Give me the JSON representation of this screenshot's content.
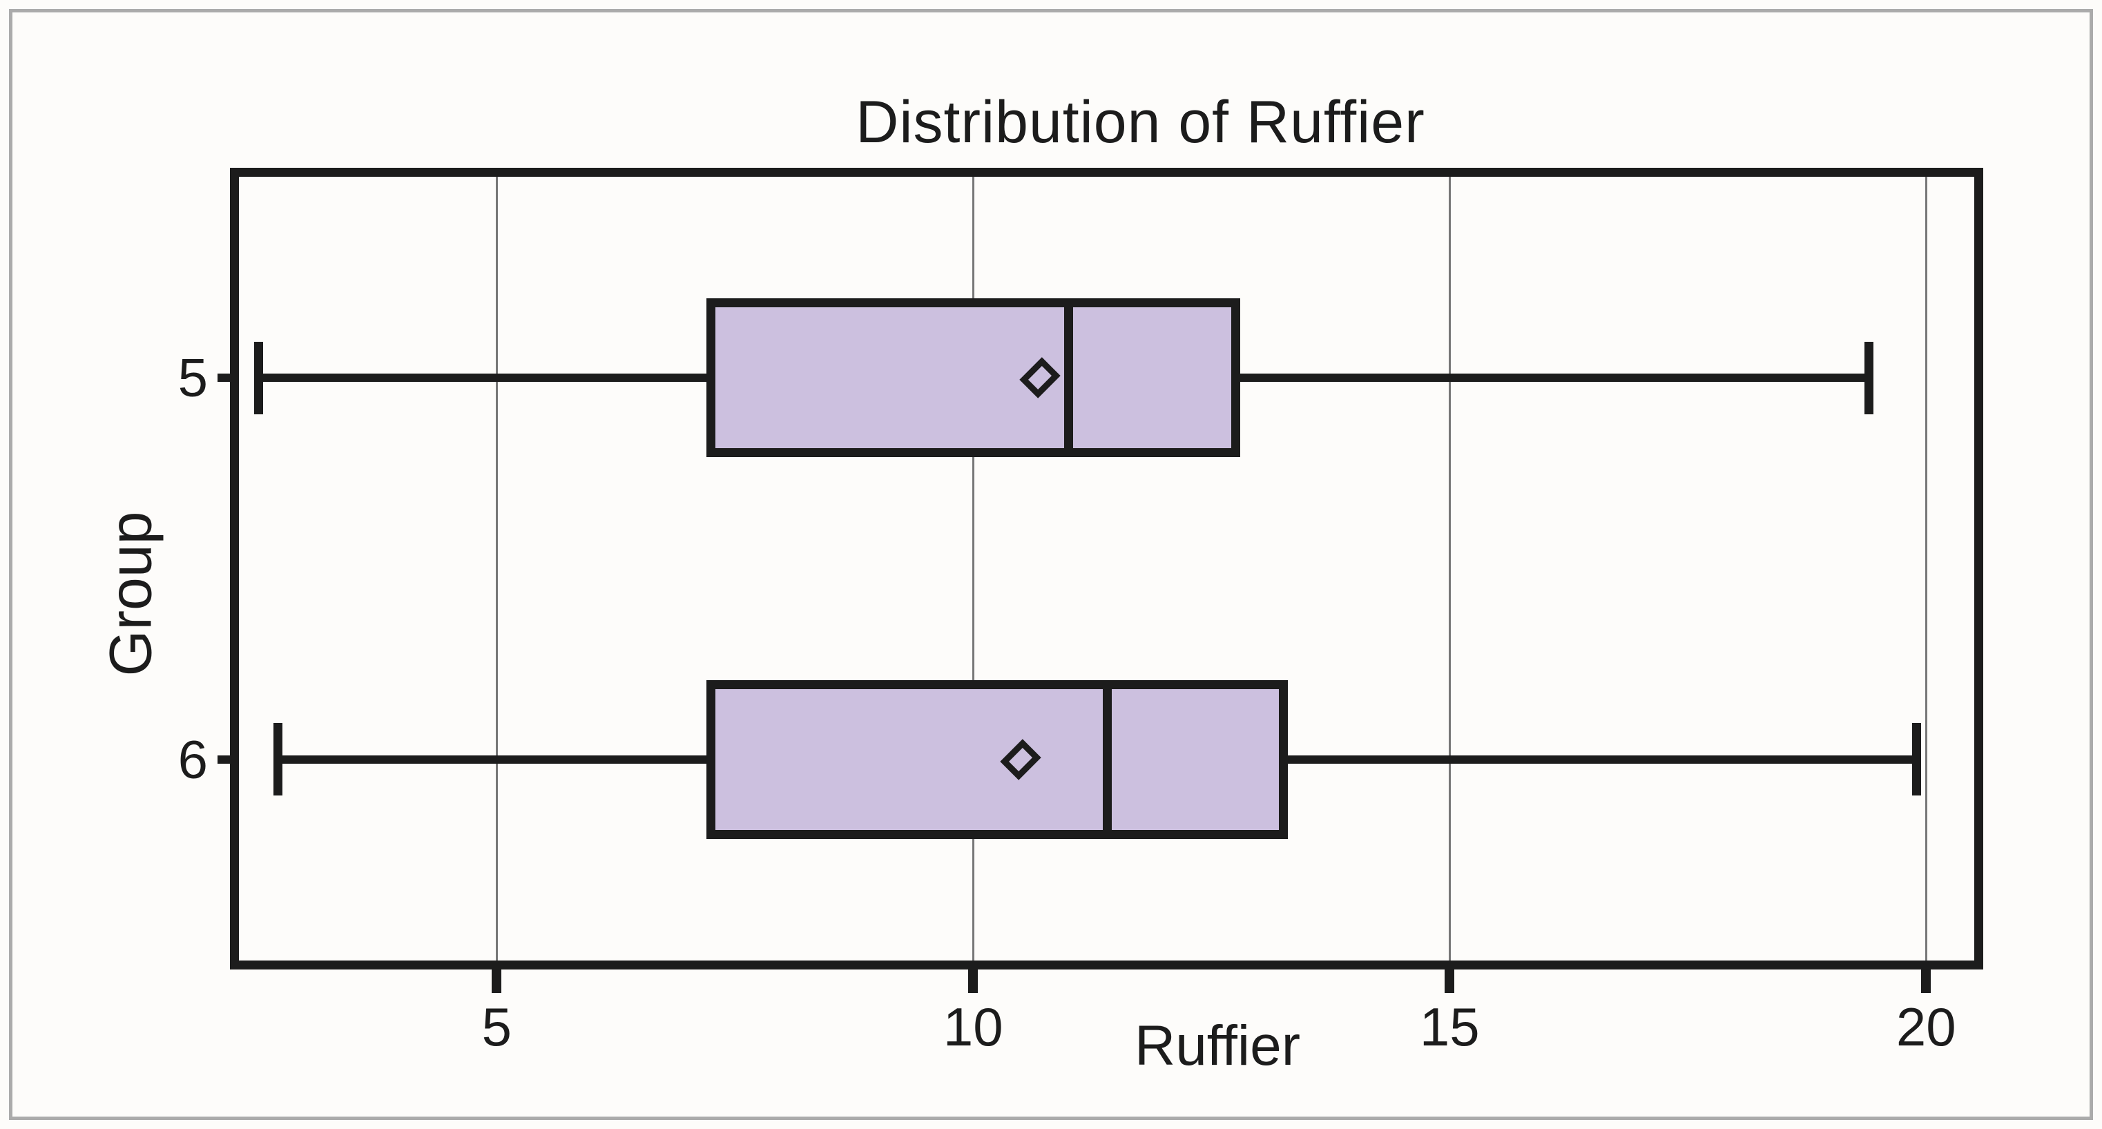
{
  "chart_data": {
    "type": "box",
    "orientation": "horizontal",
    "title": "Distribution of Ruffier",
    "xlabel": "Ruffier",
    "ylabel": "Group",
    "x_ticks": [
      5,
      10,
      15,
      20
    ],
    "x_tick_labels": [
      "5",
      "10",
      "15",
      "20"
    ],
    "xlim": [
      2.2,
      20.6
    ],
    "grid": "vertical-lines-at-ticks",
    "legend": "none",
    "categories": [
      "5",
      "6"
    ],
    "series": [
      {
        "group": "5",
        "whisker_low": 2.5,
        "q1": 7.2,
        "median": 11.0,
        "q3": 12.8,
        "whisker_high": 19.4,
        "mean": 10.7
      },
      {
        "group": "6",
        "whisker_low": 2.7,
        "q1": 7.2,
        "median": 11.4,
        "q3": 13.3,
        "whisker_high": 19.9,
        "mean": 10.5
      }
    ],
    "colors": {
      "box_fill": "#CCC0DF",
      "line": "#1C1C1C",
      "gridline": "#777777",
      "outer_frame": "#ABABAB",
      "background": "#FDFCFA"
    }
  }
}
